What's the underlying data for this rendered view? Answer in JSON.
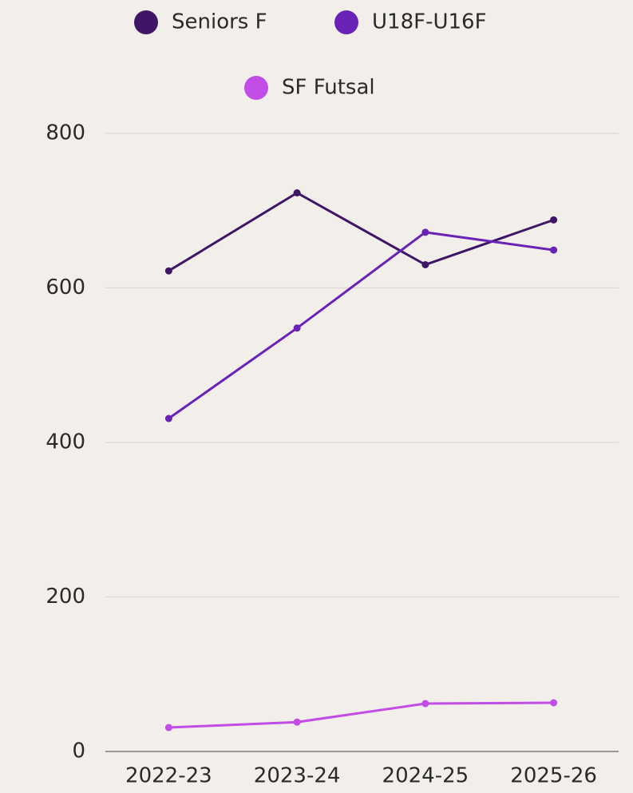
{
  "chart_data": {
    "type": "line",
    "categories": [
      "2022-23",
      "2023-24",
      "2024-25",
      "2025-26"
    ],
    "series": [
      {
        "name": "Seniors F",
        "color": "#3f1568",
        "values": [
          622,
          723,
          630,
          688
        ]
      },
      {
        "name": "U18F-U16F",
        "color": "#6a22b6",
        "values": [
          431,
          548,
          672,
          649
        ]
      },
      {
        "name": "SF Futsal",
        "color": "#c24ce6",
        "values": [
          31,
          38,
          62,
          63
        ]
      }
    ],
    "ylim": [
      0,
      800
    ],
    "yticks": [
      0,
      200,
      400,
      600,
      800
    ],
    "grid": true,
    "legend": "top"
  }
}
